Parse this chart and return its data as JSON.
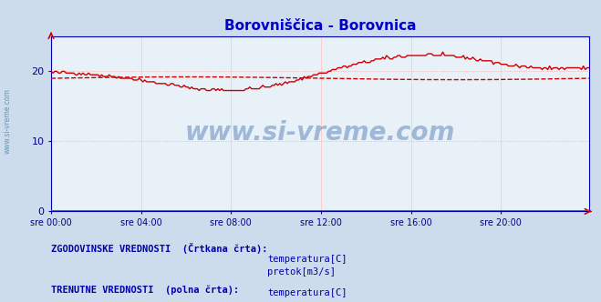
{
  "title": "Borovniščica - Borovnica",
  "title_color": "#0000cc",
  "bg_color": "#ccdcec",
  "plot_bg_color": "#e8f0f8",
  "grid_color_h": "#ffaaaa",
  "grid_color_v": "#ffcccc",
  "axis_color": "#0000aa",
  "tick_color": "#000080",
  "watermark": "www.si-vreme.com",
  "watermark_color": "#3366aa",
  "yticks": [
    0,
    10,
    20
  ],
  "ylim": [
    0,
    25
  ],
  "xtick_labels": [
    "sre 00:00",
    "sre 04:00",
    "sre 08:00",
    "sre 12:00",
    "sre 16:00",
    "sre 20:00"
  ],
  "xtick_positions": [
    0,
    48,
    96,
    144,
    192,
    240
  ],
  "n_points": 288,
  "temp_current_color": "#cc0000",
  "temp_hist_color": "#cc0000",
  "flow_color": "#00aa00",
  "legend_text_color": "#0000aa",
  "legend_hist_label": "ZGODOVINSKE VREDNOSTI  (Črtkana črta):",
  "legend_curr_label": "TRENUTNE VREDNOSTI  (polna črta):",
  "legend_temp_label": "temperatura[C]",
  "legend_flow_label": "pretok[m3/s]",
  "sidebar_text": "www.si-vreme.com",
  "sidebar_color": "#4488aa"
}
